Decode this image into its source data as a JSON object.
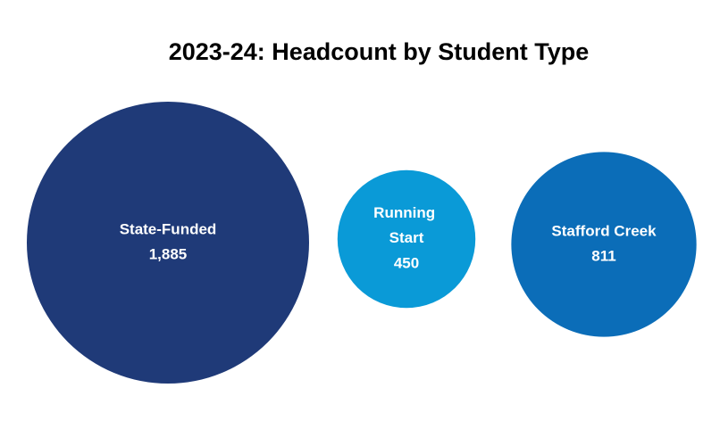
{
  "chart_data": {
    "type": "bubble",
    "title": "2023-24: Headcount by Student Type",
    "categories": [
      "State-Funded",
      "Running Start",
      "Stafford Creek"
    ],
    "values": [
      1885,
      450,
      811
    ],
    "value_labels": [
      "1,885",
      "450",
      "811"
    ],
    "colors": [
      "#1f3a78",
      "#0a9ad7",
      "#0b6db8"
    ]
  }
}
